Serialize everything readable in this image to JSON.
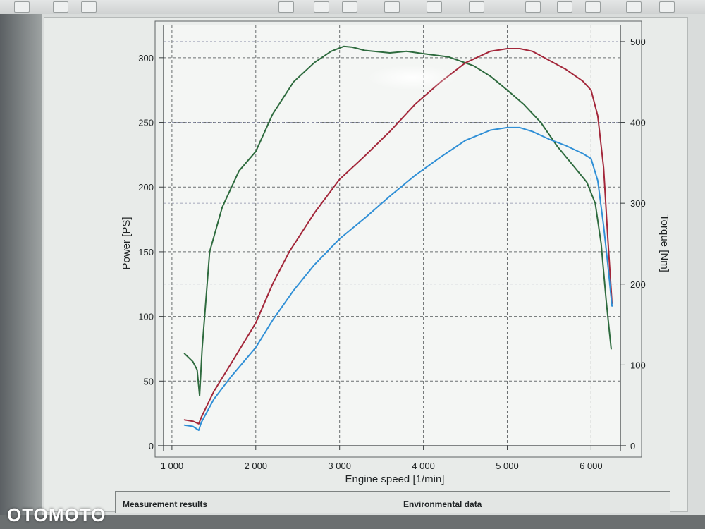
{
  "colors": {
    "torque_curve": "#2e6b3e",
    "power_curve": "#a3273a",
    "blue_curve": "#2f8fd6",
    "grid": "#6a6f70",
    "axis": "#3a3f40"
  },
  "toolbar": {
    "icons": [
      "page-icon",
      "sort-icon",
      "search-icon",
      "add-icon",
      "draw-icon",
      "image-icon",
      "layout-icon",
      "text-icon",
      "check-icon",
      "stamp-icon",
      "chevron-down-icon",
      "eraser-icon",
      "print-icon",
      "save-icon"
    ]
  },
  "tabs": {
    "measurement": "Measurement results",
    "environmental": "Environmental data"
  },
  "watermark": "OTOMOTO",
  "chart_data": {
    "type": "line",
    "xlabel": "Engine speed [1/min]",
    "ylabel": "Power [PS]",
    "y2label": "Torque [Nm]",
    "xlim": [
      900,
      6350
    ],
    "ylim": [
      0,
      325
    ],
    "y2lim": [
      0,
      520
    ],
    "xticks": [
      1000,
      2000,
      3000,
      4000,
      5000,
      6000
    ],
    "xtick_labels": [
      "1 000",
      "2 000",
      "3 000",
      "4 000",
      "5 000",
      "6 000"
    ],
    "yticks": [
      0,
      50,
      100,
      150,
      200,
      250,
      300
    ],
    "ytick_labels": [
      "0",
      "50",
      "100",
      "150",
      "200",
      "250",
      "300"
    ],
    "y2ticks": [
      0,
      100,
      200,
      300,
      400,
      500
    ],
    "y2tick_labels": [
      "0",
      "100",
      "200",
      "300",
      "400",
      "500"
    ],
    "grid": true,
    "series": [
      {
        "key": "torque",
        "axis": "right",
        "color": "#2e6b3e",
        "x": [
          1150,
          1250,
          1300,
          1330,
          1360,
          1450,
          1600,
          1800,
          2000,
          2200,
          2450,
          2700,
          2900,
          3050,
          3150,
          3300,
          3600,
          3800,
          4000,
          4300,
          4600,
          4800,
          5000,
          5200,
          5400,
          5600,
          5800,
          5950,
          6050,
          6120,
          6180,
          6240
        ],
        "y": [
          114,
          104,
          94,
          62,
          120,
          240,
          295,
          340,
          364,
          410,
          450,
          474,
          488,
          494,
          493,
          489,
          486,
          488,
          485,
          481,
          470,
          457,
          440,
          422,
          400,
          370,
          345,
          326,
          300,
          250,
          180,
          120
        ]
      },
      {
        "key": "power",
        "axis": "left",
        "color": "#a3273a",
        "x": [
          1150,
          1250,
          1320,
          1350,
          1500,
          1700,
          2000,
          2200,
          2400,
          2700,
          3000,
          3300,
          3600,
          3900,
          4200,
          4500,
          4800,
          5000,
          5150,
          5300,
          5500,
          5700,
          5900,
          6000,
          6080,
          6150,
          6200,
          6250
        ],
        "y": [
          20,
          19,
          17,
          22,
          42,
          63,
          95,
          125,
          150,
          180,
          206,
          224,
          243,
          264,
          281,
          296,
          305,
          307,
          307,
          305,
          298,
          291,
          282,
          275,
          255,
          215,
          160,
          110
        ]
      },
      {
        "key": "blue",
        "axis": "left",
        "color": "#2f8fd6",
        "x": [
          1150,
          1250,
          1320,
          1350,
          1500,
          1700,
          2000,
          2200,
          2450,
          2700,
          3000,
          3300,
          3600,
          3900,
          4200,
          4500,
          4800,
          5000,
          5150,
          5300,
          5500,
          5700,
          5900,
          6000,
          6080,
          6150,
          6200,
          6250
        ],
        "y": [
          16,
          15,
          12,
          18,
          36,
          53,
          76,
          97,
          120,
          140,
          160,
          176,
          193,
          209,
          223,
          236,
          244,
          246,
          246,
          243,
          237,
          232,
          226,
          222,
          205,
          170,
          140,
          108
        ]
      }
    ]
  }
}
